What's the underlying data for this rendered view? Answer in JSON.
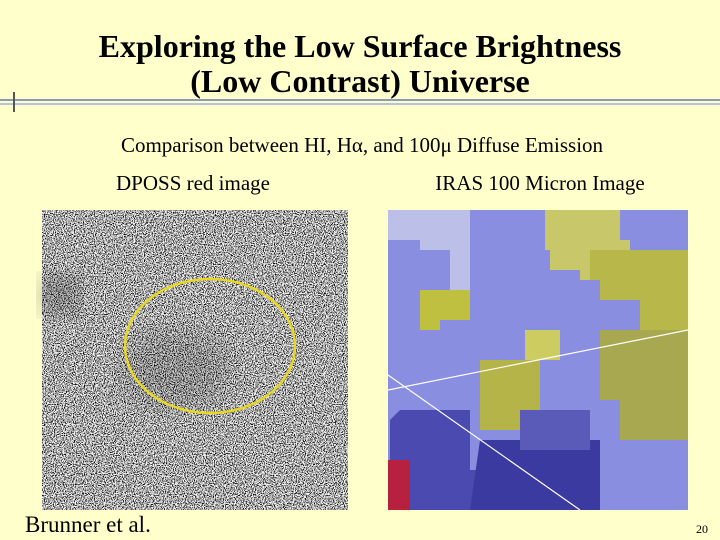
{
  "header": {
    "title_lines": [
      "Exploring the Low Surface Brightness",
      "(Low Contrast) Universe"
    ]
  },
  "subtitle": "Comparison between HI, Hα, and 100μ Diffuse Emission",
  "images": [
    {
      "label": "DPOSS red image"
    },
    {
      "label": "IRAS 100 Micron Image"
    }
  ],
  "credit": "Brunner et al.",
  "page_number": "20"
}
